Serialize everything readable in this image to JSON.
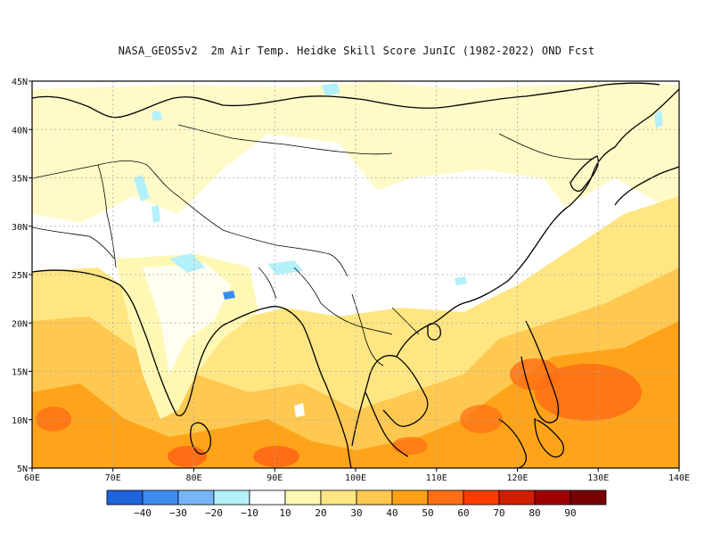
{
  "title": "NASA_GEOS5v2  2m Air Temp. Heidke Skill Score JunIC (1982-2022) OND Fcst",
  "map": {
    "lon_range": [
      60,
      140
    ],
    "lat_range": [
      5,
      45
    ],
    "x_ticks": [
      "60E",
      "70E",
      "80E",
      "90E",
      "100E",
      "110E",
      "120E",
      "130E",
      "140E"
    ],
    "y_ticks": [
      "5N",
      "10N",
      "15N",
      "20N",
      "25N",
      "30N",
      "35N",
      "40N",
      "45N"
    ]
  },
  "colorbar": {
    "colors": [
      "#1e64dc",
      "#3c8cf0",
      "#78b4f8",
      "#b4f0fa",
      "#ffffff",
      "#fff8b4",
      "#ffe682",
      "#ffc850",
      "#ffa014",
      "#ff6e14",
      "#ff3c00",
      "#d21e00",
      "#a00000",
      "#780000"
    ],
    "labels": [
      "−40",
      "−30",
      "−20",
      "−10",
      "10",
      "20",
      "30",
      "40",
      "50",
      "60",
      "70",
      "80",
      "90"
    ]
  }
}
